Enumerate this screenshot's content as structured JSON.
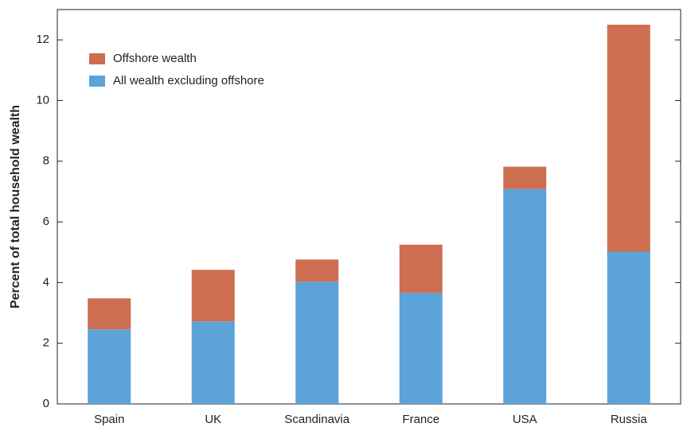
{
  "chart_data": {
    "type": "stacked_bar",
    "y_label": "Percent of total household wealth",
    "categories": [
      "Spain",
      "UK",
      "Scandinavia",
      "France",
      "USA",
      "Russia"
    ],
    "series": [
      {
        "name": "All wealth excluding offshore",
        "color": "#5ba3d9",
        "values": [
          2.46,
          2.72,
          4.03,
          3.66,
          7.08,
          5.02
        ]
      },
      {
        "name": "Offshore wealth",
        "color": "#cd6e50",
        "values": [
          1.02,
          1.7,
          0.73,
          1.59,
          0.74,
          7.48
        ]
      }
    ],
    "ylim": [
      0,
      13
    ],
    "yticks": [
      0,
      2,
      4,
      6,
      8,
      10,
      12
    ]
  }
}
